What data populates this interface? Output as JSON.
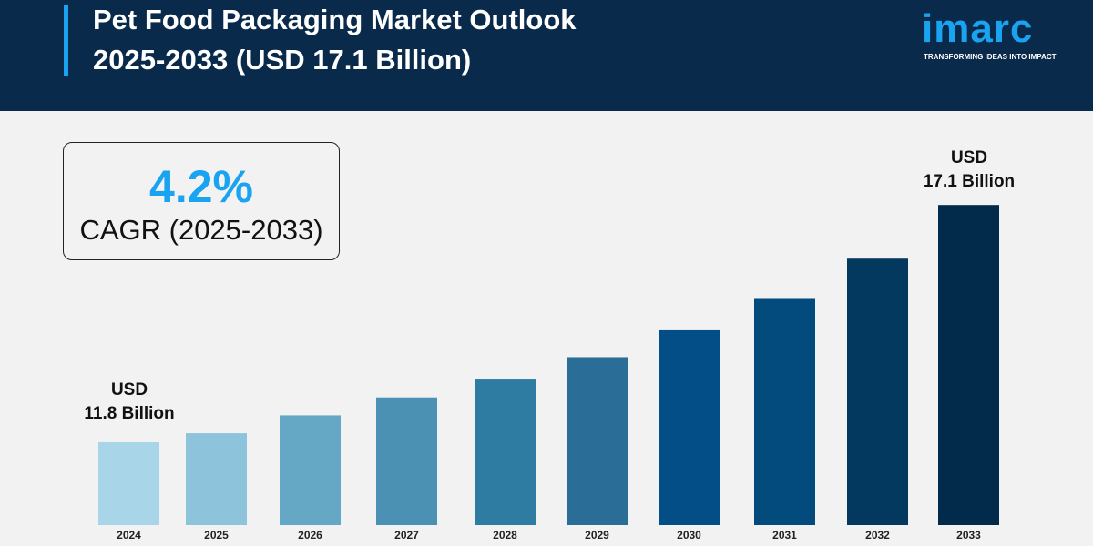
{
  "header": {
    "title_line1": "Pet Food Packaging Market Outlook",
    "title_line2": "2025-2033 (USD 17.1 Billion)",
    "logo_word": "imarc",
    "logo_tagline": "TRANSFORMING IDEAS INTO IMPACT"
  },
  "cagr": {
    "value": "4.2%",
    "label": "CAGR (2025-2033)"
  },
  "annotations": {
    "start_line1": "USD",
    "start_line2": "11.8 Billion",
    "end_line1": "USD",
    "end_line2": "17.1 Billion"
  },
  "colors": {
    "header_bg": "#0a2a4b",
    "accent": "#1aa3f0",
    "background": "#f2f2f2"
  },
  "chart_data": {
    "type": "bar",
    "title": "Pet Food Packaging Market Outlook 2025-2033 (USD 17.1 Billion)",
    "categories": [
      "2024",
      "2025",
      "2026",
      "2027",
      "2028",
      "2029",
      "2030",
      "2031",
      "2032",
      "2033"
    ],
    "values": [
      11.8,
      12.0,
      12.4,
      12.8,
      13.2,
      13.7,
      14.3,
      15.0,
      15.9,
      17.1
    ],
    "unit": "USD Billion",
    "ylim": [
      10,
      18
    ],
    "grid": false,
    "legend": "none",
    "bar_colors": [
      "#a8d5e8",
      "#8ec3dc",
      "#64a8c6",
      "#4a91b3",
      "#2e7ca2",
      "#2a6d96",
      "#034e86",
      "#044b7d",
      "#03385f",
      "#022a4a"
    ]
  }
}
